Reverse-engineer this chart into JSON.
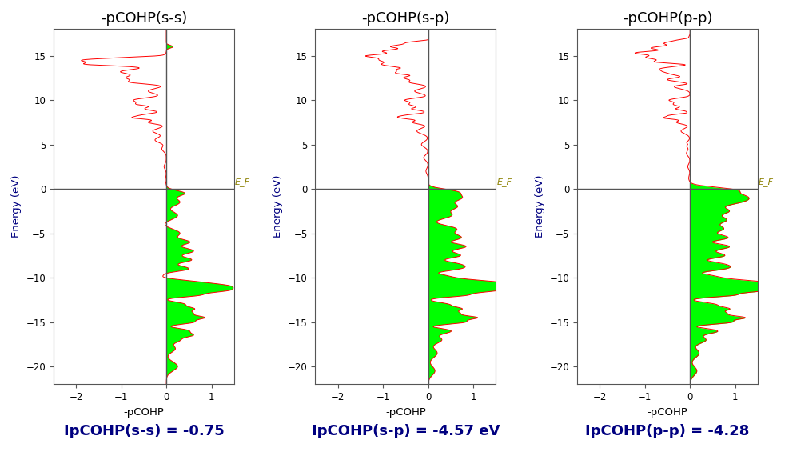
{
  "titles": [
    "-pCOHP(s-s)",
    "-pCOHP(s-p)",
    "-pCOHP(p-p)"
  ],
  "xlabel": "-pCOHP",
  "ylabel": "Energy (eV)",
  "xlim": [
    -2.5,
    1.5
  ],
  "ylim": [
    -22,
    18
  ],
  "yticks": [
    -20,
    -15,
    -10,
    -5,
    0,
    5,
    10,
    15
  ],
  "xticks": [
    -2,
    -1,
    0,
    1
  ],
  "ef_label": "E_F",
  "annotations": [
    "IpCOHP(s-s) = -0.75",
    "IpCOHP(s-p) = -4.57 eV",
    "IpCOHP(p-p) = -4.28"
  ],
  "line_color": "#FF0000",
  "fill_color": "#00FF00",
  "background_color": "#FFFFFF",
  "ef_color": "#8B8000",
  "annotation_color": "#000080",
  "annotation_fontsize": 13,
  "title_fontsize": 13,
  "axis_color": "#555555",
  "spine_color": "#555555"
}
